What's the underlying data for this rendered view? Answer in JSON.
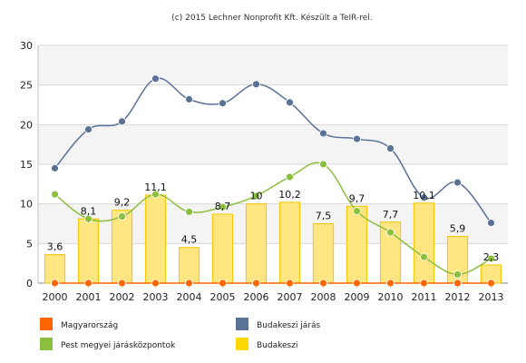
{
  "credit": "(c) 2015 Lechner Nonprofit Kft. Készült a TeIR-rel.",
  "chart_data": {
    "type": "bar",
    "title": "",
    "xlabel": "",
    "ylabel": "",
    "ylim": [
      0,
      30
    ],
    "yticks": [
      0,
      5,
      10,
      15,
      20,
      25,
      30
    ],
    "grid": true,
    "legend_position": "bottom",
    "categories": [
      "2000",
      "2001",
      "2002",
      "2003",
      "2004",
      "2005",
      "2006",
      "2007",
      "2008",
      "2009",
      "2010",
      "2011",
      "2012",
      "2013"
    ],
    "series": [
      {
        "name": "Budakeszi",
        "type": "bar",
        "color": "#ffd700",
        "labels_shown": true,
        "values": [
          3.6,
          8.1,
          9.2,
          11.1,
          4.5,
          8.7,
          10,
          10.2,
          7.5,
          9.7,
          7.7,
          10.1,
          5.9,
          2.3
        ],
        "value_labels": [
          "3,6",
          "8,1",
          "9,2",
          "11,1",
          "4,5",
          "8,7",
          "10",
          "10,2",
          "7,5",
          "9,7",
          "7,7",
          "10,1",
          "5,9",
          "2,3"
        ]
      },
      {
        "name": "Budakeszi járás",
        "type": "spline",
        "color": "#5a7295",
        "values": [
          14.5,
          19.4,
          20.4,
          25.8,
          23.2,
          22.7,
          25.1,
          22.8,
          18.9,
          18.2,
          17.0,
          10.8,
          12.7,
          7.6
        ]
      },
      {
        "name": "Pest megyei járásközpontok",
        "type": "spline",
        "color": "#8dbf3f",
        "values": [
          11.2,
          8.1,
          8.4,
          11.2,
          9.0,
          9.6,
          11.0,
          13.4,
          15.0,
          9.1,
          6.4,
          3.3,
          1.1,
          3.1
        ]
      },
      {
        "name": "Magyarország",
        "type": "line",
        "color": "#ff6600",
        "values": [
          0,
          0,
          0,
          0,
          0,
          0,
          0,
          0,
          0,
          0,
          0,
          0,
          0,
          0
        ]
      }
    ],
    "legend": [
      {
        "name": "Magyarország",
        "color": "#ff6600"
      },
      {
        "name": "Budakeszi járás",
        "color": "#5a7295"
      },
      {
        "name": "Pest megyei járásközpontok",
        "color": "#8dbf3f"
      },
      {
        "name": "Budakeszi",
        "color": "#ffd700"
      }
    ]
  }
}
